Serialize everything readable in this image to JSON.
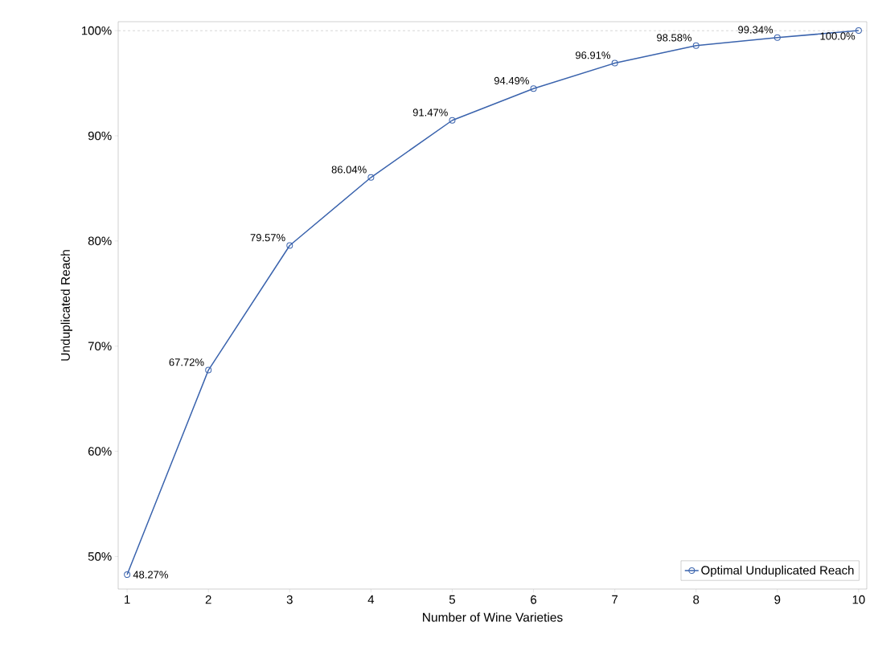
{
  "chart_data": {
    "type": "line",
    "xlabel": "Number of Wine Varieties",
    "ylabel": "Unduplicated Reach",
    "x": [
      1,
      2,
      3,
      4,
      5,
      6,
      7,
      8,
      9,
      10
    ],
    "series": [
      {
        "name": "Optimal Unduplicated Reach",
        "color": "#3a63ad",
        "values": [
          48.27,
          67.72,
          79.57,
          86.04,
          91.47,
          94.49,
          96.91,
          98.58,
          99.34,
          100.0
        ],
        "value_labels": [
          "48.27%",
          "67.72%",
          "79.57%",
          "86.04%",
          "91.47%",
          "94.49%",
          "96.91%",
          "98.58%",
          "99.34%",
          "100.0%"
        ]
      }
    ],
    "xlim": [
      0.89,
      10.1
    ],
    "ylim": [
      46.9,
      100.85
    ],
    "xticks": [
      1,
      2,
      3,
      4,
      5,
      6,
      7,
      8,
      9,
      10
    ],
    "yticks": [
      {
        "value": 50,
        "label": "50%"
      },
      {
        "value": 60,
        "label": "60%"
      },
      {
        "value": 70,
        "label": "70%"
      },
      {
        "value": 80,
        "label": "80%"
      },
      {
        "value": 90,
        "label": "90%"
      },
      {
        "value": 100,
        "label": "100%"
      }
    ],
    "ref_lines": [
      {
        "axis": "y",
        "value": 100,
        "color": "#c8c8c8",
        "line_style": "dashed"
      }
    ],
    "marker": "circle",
    "line_style": "solid",
    "legend": "bottom right",
    "grid": false
  }
}
